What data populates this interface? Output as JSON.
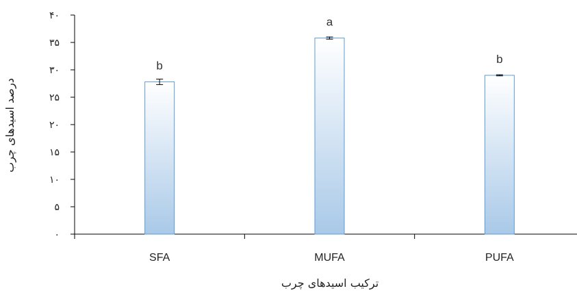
{
  "chart_data": {
    "type": "bar",
    "categories": [
      "SFA",
      "MUFA",
      "PUFA"
    ],
    "values": [
      27.8,
      35.8,
      29.0
    ],
    "errors": [
      0.5,
      0.2,
      0.1
    ],
    "data_labels": [
      "b",
      "a",
      "b"
    ],
    "xlabel": "ترکیب اسیدهای چرب",
    "ylabel": "درصد اسیدهای چرب",
    "ylim": [
      0,
      40
    ],
    "yticks": [
      0,
      5,
      10,
      15,
      20,
      25,
      30,
      35,
      40
    ],
    "ytick_labels": [
      "۰",
      "۵",
      "۱۰",
      "۱۵",
      "۲۰",
      "۲۵",
      "۳۰",
      "۳۵",
      "۴۰"
    ],
    "grid": false,
    "legend": "none",
    "colors": {
      "bar_top": "#ffffff",
      "bar_bottom": "#a9c9e8",
      "bar_border": "#5b9bd5",
      "axis": "#000000"
    }
  }
}
